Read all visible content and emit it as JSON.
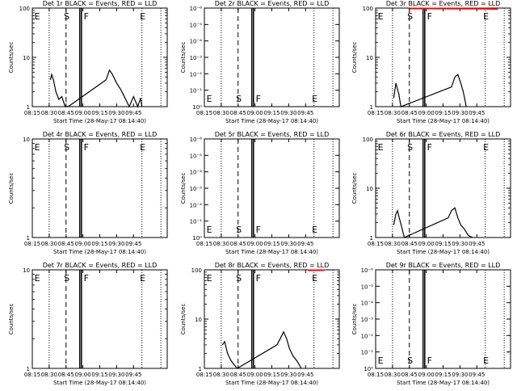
{
  "chart_data": [
    {
      "type": "line",
      "title": "Det 1r BLACK = Events, RED = LLD",
      "xlabel": "Start Time (28-May-17 08:14:40)",
      "ylabel": "Counts/sec",
      "yscale": "log",
      "ylim": [
        1,
        100
      ],
      "ytick_labels": [
        "1",
        "10",
        "100"
      ],
      "xtick_labels": [
        "08:15",
        "08:30",
        "08:45",
        "09:00",
        "09:15",
        "09:30",
        "09:45"
      ],
      "markers": [
        "E",
        "S",
        "F",
        "E"
      ],
      "series": [
        {
          "color": "#000000",
          "points": [
            [
              0.43,
              3.5
            ],
            [
              0.46,
              4.5
            ],
            [
              0.5,
              3.5
            ],
            [
              0.56,
              2.0
            ],
            [
              0.63,
              1.4
            ],
            [
              0.7,
              1.6
            ],
            [
              0.78,
              1.0
            ],
            [
              0.85,
              1.0
            ],
            [
              1.75,
              3.5
            ],
            [
              1.83,
              5.5
            ],
            [
              1.9,
              4.5
            ],
            [
              2.0,
              3.0
            ],
            [
              2.1,
              2.2
            ],
            [
              2.2,
              1.5
            ],
            [
              2.3,
              1.0
            ],
            [
              2.4,
              1.6
            ],
            [
              2.5,
              1.0
            ],
            [
              2.57,
              1.5
            ],
            [
              2.6,
              1.0
            ]
          ]
        }
      ]
    },
    {
      "type": "line",
      "title": "Det 2r BLACK = Events, RED = LLD",
      "xlabel": "Start Time (28-May-17 08:14:40)",
      "ylabel": "Counts/sec",
      "yscale": "log",
      "ylim": [
        1,
        1000000
      ],
      "ytick_labels": [
        "10⁰",
        "10⁻¹",
        "10⁻²",
        "10⁻³",
        "10⁻⁴",
        "10⁻⁵",
        "10⁻⁶"
      ],
      "xtick_labels": [
        "08:15",
        "08:30",
        "08:45",
        "09:00",
        "09:15",
        "09:30",
        "09:45"
      ],
      "markers": [
        "E",
        "S",
        "F",
        "E"
      ],
      "series": []
    },
    {
      "type": "line",
      "title": "Det 3r BLACK = Events, RED = LLD",
      "xlabel": "Start Time (28-May-17 08:14:40)",
      "ylabel": "Counts/sec",
      "yscale": "log",
      "ylim": [
        1,
        100
      ],
      "ytick_labels": [
        "1",
        "10",
        "100"
      ],
      "xtick_labels": [
        "08:15",
        "08:30",
        "08:45",
        "09:00",
        "09:15",
        "09:30",
        "09:45"
      ],
      "markers": [
        "E",
        "S",
        "F",
        "E"
      ],
      "series": [
        {
          "color": "#000000",
          "points": [
            [
              0.43,
              1.5
            ],
            [
              0.48,
              3.0
            ],
            [
              0.55,
              1.8
            ],
            [
              0.6,
              1.0
            ],
            [
              1.8,
              2.5
            ],
            [
              1.88,
              4.0
            ],
            [
              1.95,
              4.5
            ],
            [
              2.02,
              3.0
            ],
            [
              2.08,
              2.0
            ],
            [
              2.15,
              1.0
            ]
          ]
        },
        {
          "color": "#ff0000",
          "points": [
            [
              0.8,
              98
            ],
            [
              1.3,
              98
            ],
            [
              2.5,
              97
            ],
            [
              2.9,
              96
            ]
          ]
        }
      ]
    },
    {
      "type": "line",
      "title": "Det 4r BLACK = Events, RED = LLD",
      "xlabel": "Start Time (28-May-17 08:14:40)",
      "ylabel": "Counts/sec",
      "yscale": "log",
      "ylim": [
        1,
        10
      ],
      "ytick_labels": [
        "1",
        "10"
      ],
      "xtick_labels": [
        "08:15",
        "08:30",
        "08:45",
        "09:00",
        "09:15",
        "09:30",
        "09:45"
      ],
      "markers": [
        "E",
        "S",
        "F",
        "E"
      ],
      "series": []
    },
    {
      "type": "line",
      "title": "Det 5r BLACK = Events, RED = LLD",
      "xlabel": "Start Time (28-May-17 08:14:40)",
      "ylabel": "Counts/sec",
      "yscale": "log",
      "ylim": [
        1,
        1000000
      ],
      "ytick_labels": [
        "10⁰",
        "10⁻¹",
        "10⁻²",
        "10⁻³",
        "10⁻⁴",
        "10⁻⁵",
        "10⁻⁶"
      ],
      "xtick_labels": [
        "08:15",
        "08:30",
        "08:45",
        "09:00",
        "09:15",
        "09:30",
        "09:45"
      ],
      "markers": [
        "E",
        "S",
        "F",
        "E"
      ],
      "series": []
    },
    {
      "type": "line",
      "title": "Det 6r BLACK = Events, RED = LLD",
      "xlabel": "Start Time (28-May-17 08:14:40)",
      "ylabel": "Counts/sec",
      "yscale": "log",
      "ylim": [
        1,
        100
      ],
      "ytick_labels": [
        "1",
        "10",
        "100"
      ],
      "xtick_labels": [
        "08:15",
        "08:30",
        "08:45",
        "09:00",
        "09:15",
        "09:30",
        "09:45"
      ],
      "markers": [
        "E",
        "S",
        "F",
        "E"
      ],
      "series": [
        {
          "color": "#000000",
          "points": [
            [
              0.43,
              1.8
            ],
            [
              0.48,
              3.0
            ],
            [
              0.52,
              3.5
            ],
            [
              0.56,
              2.5
            ],
            [
              0.62,
              1.6
            ],
            [
              0.68,
              1.0
            ],
            [
              1.72,
              2.5
            ],
            [
              1.8,
              3.5
            ],
            [
              1.88,
              4.0
            ],
            [
              1.95,
              2.5
            ],
            [
              2.02,
              1.8
            ],
            [
              2.1,
              1.5
            ],
            [
              2.2,
              1.1
            ],
            [
              2.3,
              1.0
            ]
          ]
        }
      ]
    },
    {
      "type": "line",
      "title": "Det 7r BLACK = Events, RED = LLD",
      "xlabel": "Start Time (28-May-17 08:14:40)",
      "ylabel": "Counts/sec",
      "yscale": "log",
      "ylim": [
        1,
        10
      ],
      "ytick_labels": [
        "1",
        "10"
      ],
      "xtick_labels": [
        "08:15",
        "08:30",
        "08:45",
        "09:00",
        "09:15",
        "09:30",
        "09:45"
      ],
      "markers": [
        "E",
        "S",
        "F",
        "E"
      ],
      "series": []
    },
    {
      "type": "line",
      "title": "Det 8r BLACK = Events, RED = LLD",
      "xlabel": "Start Time (28-May-17 08:14:40)",
      "ylabel": "Counts/sec",
      "yscale": "log",
      "ylim": [
        1,
        100
      ],
      "ytick_labels": [
        "1",
        "10",
        "100"
      ],
      "xtick_labels": [
        "08:15",
        "08:30",
        "08:45",
        "09:00",
        "09:15",
        "09:30",
        "09:45"
      ],
      "markers": [
        "E",
        "S",
        "F",
        "E"
      ],
      "series": [
        {
          "color": "#000000",
          "points": [
            [
              0.43,
              3.0
            ],
            [
              0.48,
              3.5
            ],
            [
              0.55,
              2.0
            ],
            [
              0.62,
              1.5
            ],
            [
              0.7,
              1.2
            ],
            [
              0.78,
              1.0
            ],
            [
              1.72,
              3.0
            ],
            [
              1.8,
              4.0
            ],
            [
              1.88,
              5.5
            ],
            [
              1.95,
              4.0
            ],
            [
              2.02,
              2.5
            ],
            [
              2.1,
              1.8
            ],
            [
              2.2,
              1.4
            ],
            [
              2.3,
              1.0
            ]
          ]
        },
        {
          "color": "#ff0000",
          "points": [
            [
              2.45,
              98
            ],
            [
              2.85,
              98
            ]
          ]
        }
      ]
    },
    {
      "type": "line",
      "title": "Det 9r BLACK = Events, RED = LLD",
      "xlabel": "Start Time (28-May-17 08:14:40)",
      "ylabel": "Counts/sec",
      "yscale": "log",
      "ylim": [
        1,
        1000000
      ],
      "ytick_labels": [
        "10⁰",
        "10⁻¹",
        "10⁻²",
        "10⁻³",
        "10⁻⁴",
        "10⁻⁵",
        "10⁻⁶"
      ],
      "xtick_labels": [
        "08:15",
        "08:30",
        "08:45",
        "09:00",
        "09:15",
        "09:30",
        "09:45"
      ],
      "markers": [
        "E",
        "S",
        "F",
        "E"
      ],
      "series": []
    }
  ]
}
